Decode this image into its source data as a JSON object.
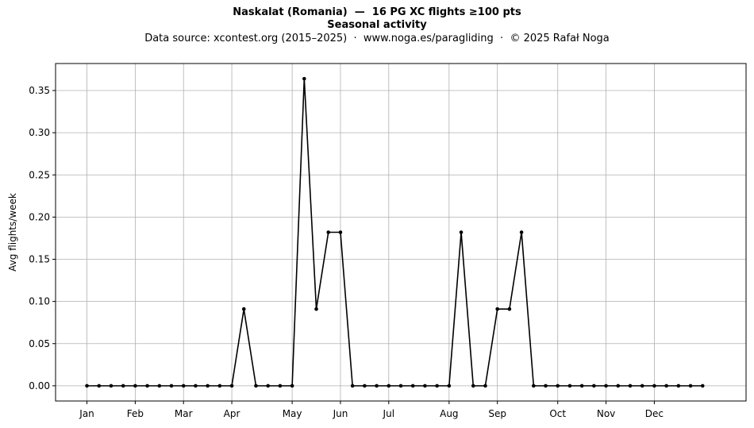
{
  "chart_data": {
    "type": "line",
    "title": "Naskalat (Romania)  —  16 PG XC flights ≥100 pts",
    "subtitle": "Seasonal activity",
    "source_note": "Data source: xcontest.org (2015–2025)  ·  www.noga.es/paragliding  ·  © 2025 Rafał Noga",
    "xlabel": "",
    "ylabel": "Avg flights/week",
    "ylim": [
      -0.018,
      0.382
    ],
    "yticks": [
      0.0,
      0.05,
      0.1,
      0.15,
      0.2,
      0.25,
      0.3,
      0.35
    ],
    "ytick_labels": [
      "0.00",
      "0.05",
      "0.10",
      "0.15",
      "0.20",
      "0.25",
      "0.30",
      "0.35"
    ],
    "xlim": [
      -2.6,
      54.6
    ],
    "month_ticks": [
      {
        "label": "Jan",
        "week": 0
      },
      {
        "label": "Feb",
        "week": 4
      },
      {
        "label": "Mar",
        "week": 8
      },
      {
        "label": "Apr",
        "week": 12
      },
      {
        "label": "May",
        "week": 17
      },
      {
        "label": "Jun",
        "week": 21
      },
      {
        "label": "Jul",
        "week": 25
      },
      {
        "label": "Aug",
        "week": 30
      },
      {
        "label": "Sep",
        "week": 34
      },
      {
        "label": "Oct",
        "week": 39
      },
      {
        "label": "Nov",
        "week": 43
      },
      {
        "label": "Dec",
        "week": 47
      }
    ],
    "grid": true,
    "series": [
      {
        "color": "#000000",
        "x": [
          0,
          1,
          2,
          3,
          4,
          5,
          6,
          7,
          8,
          9,
          10,
          11,
          12,
          13,
          14,
          15,
          16,
          17,
          18,
          19,
          20,
          21,
          22,
          23,
          24,
          25,
          26,
          27,
          28,
          29,
          30,
          31,
          32,
          33,
          34,
          35,
          36,
          37,
          38,
          39,
          40,
          41,
          42,
          43,
          44,
          45,
          46,
          47,
          48,
          49,
          50,
          51
        ],
        "values": [
          0,
          0,
          0,
          0,
          0,
          0,
          0,
          0,
          0,
          0,
          0,
          0,
          0,
          0.091,
          0,
          0,
          0,
          0,
          0.364,
          0.091,
          0.182,
          0.182,
          0,
          0,
          0,
          0,
          0,
          0,
          0,
          0,
          0,
          0.182,
          0,
          0,
          0.091,
          0.091,
          0.182,
          0,
          0,
          0,
          0,
          0,
          0,
          0,
          0,
          0,
          0,
          0,
          0,
          0,
          0,
          0
        ]
      }
    ]
  }
}
